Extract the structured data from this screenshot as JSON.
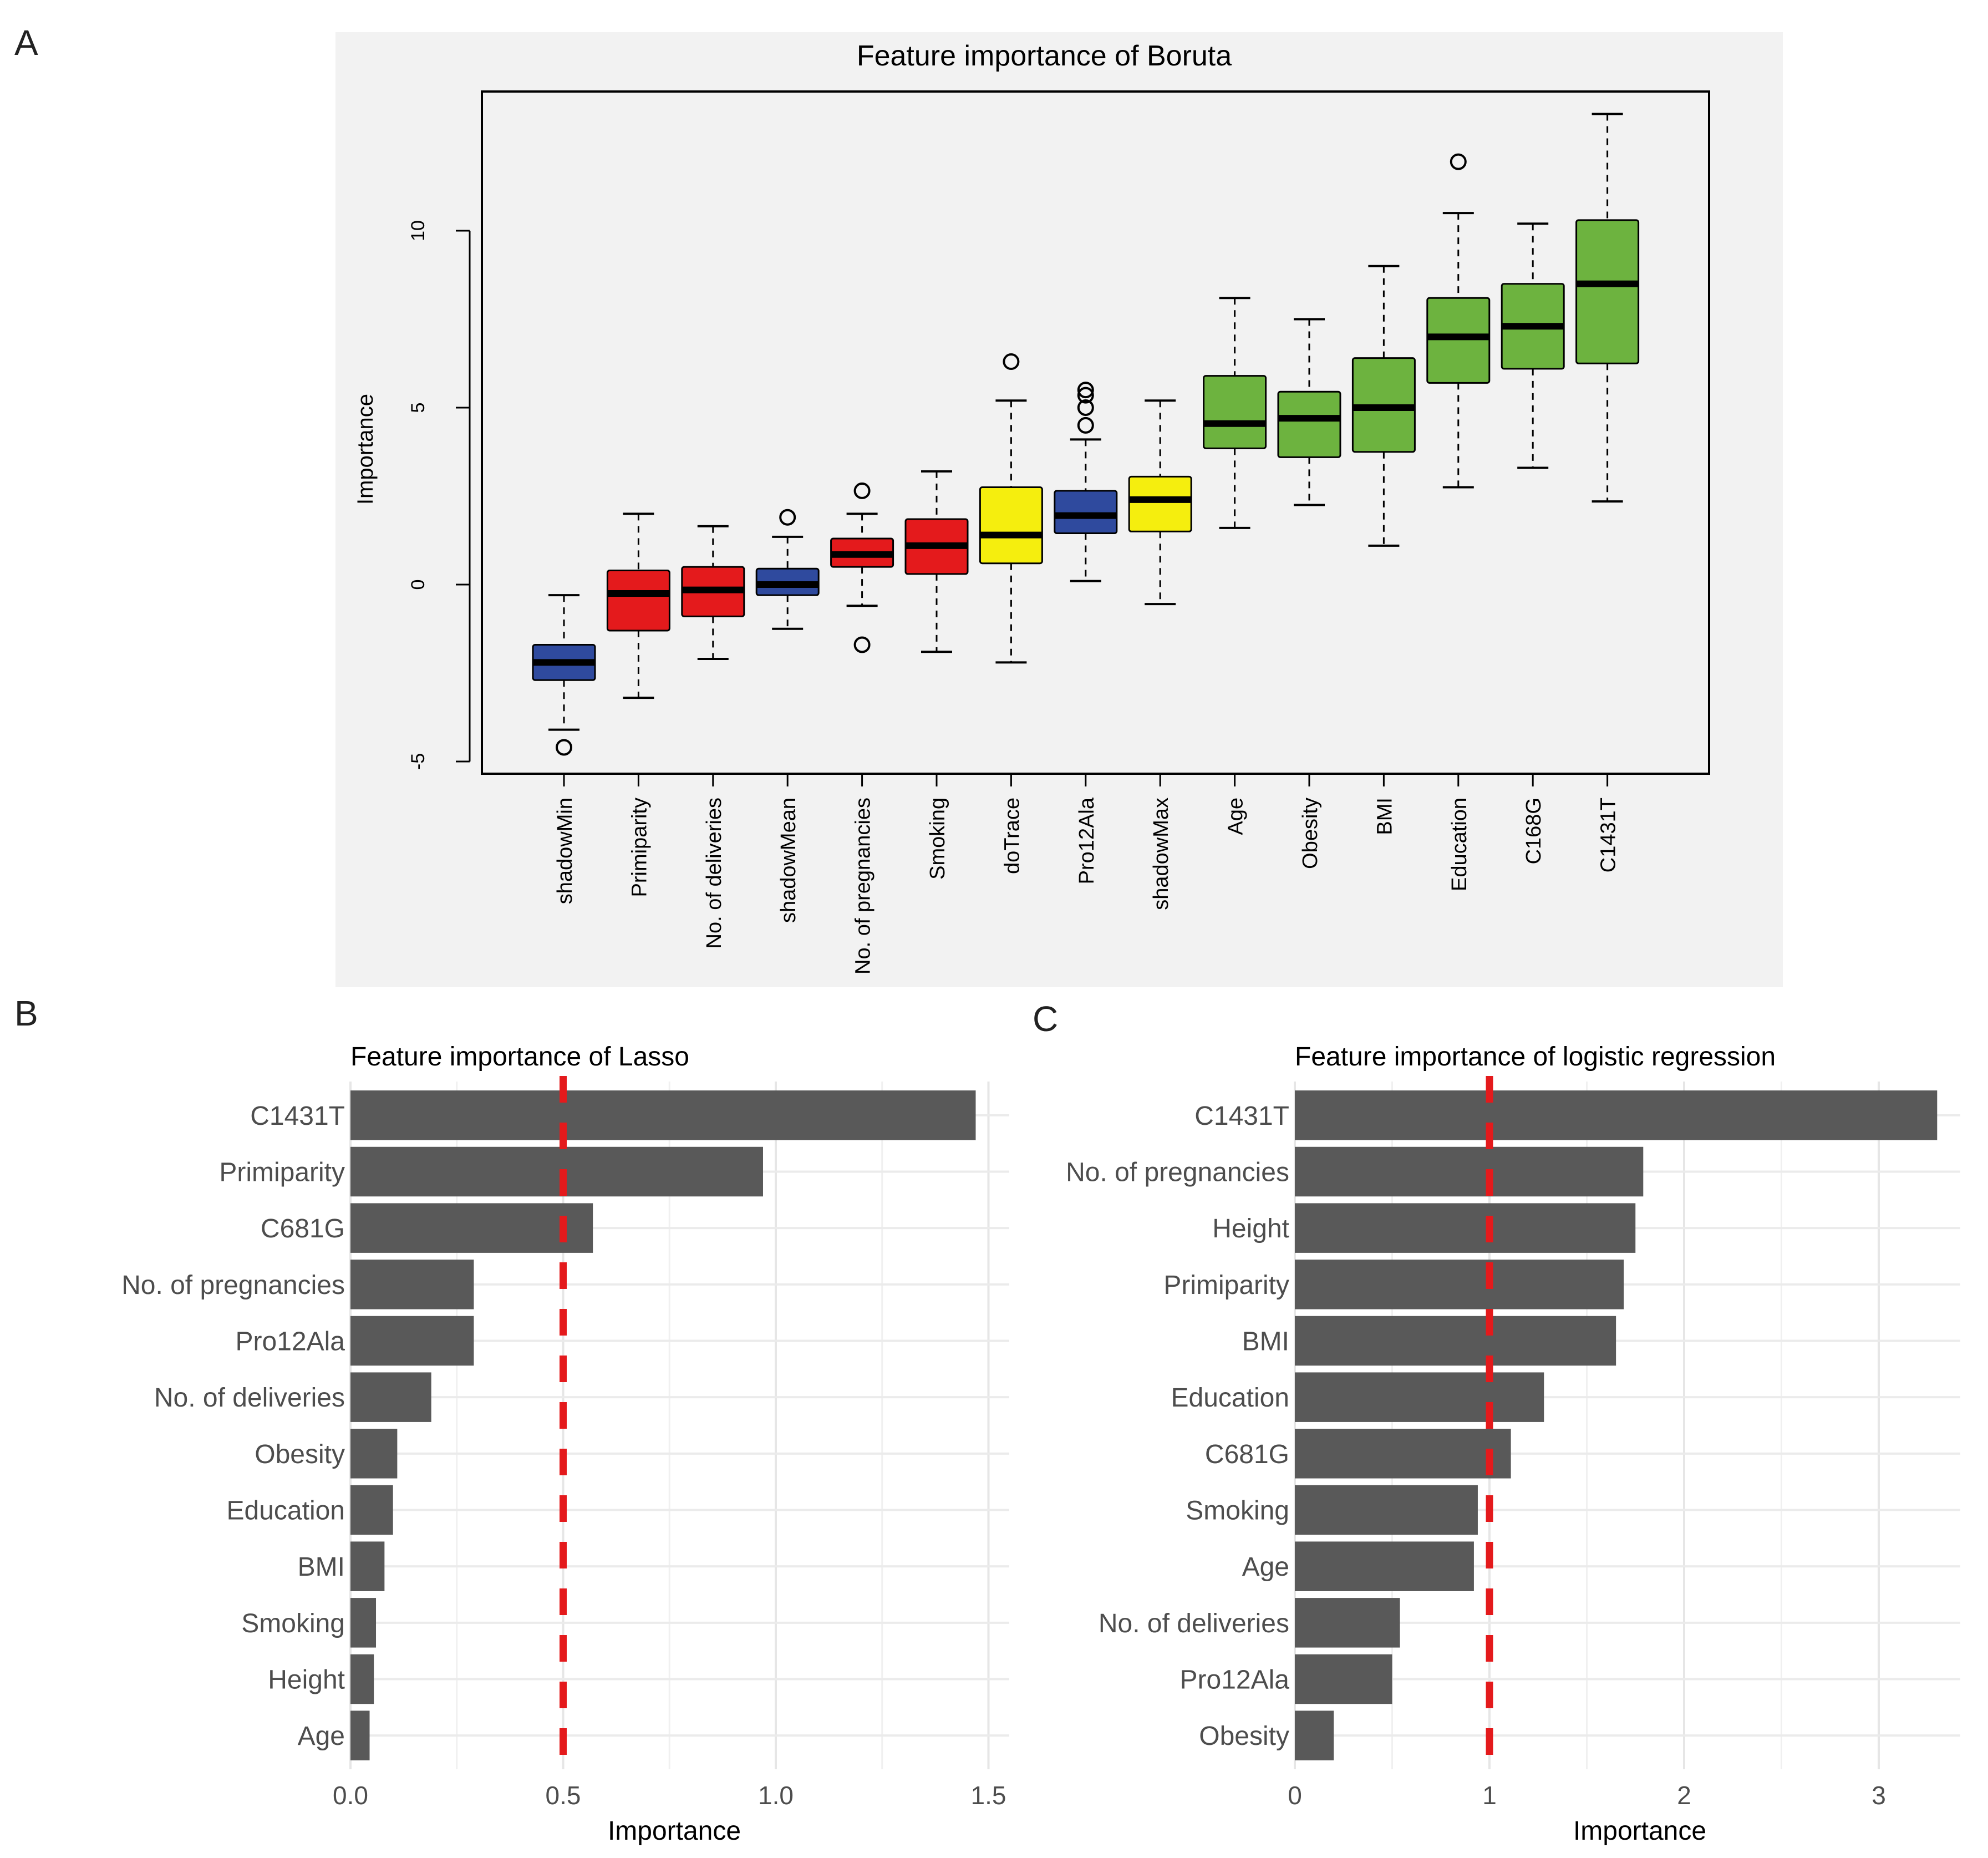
{
  "panel_letters": {
    "a": "A",
    "b": "B",
    "c": "C"
  },
  "colors": {
    "rejected": "#e41a1c",
    "tentative": "#f5ee0e",
    "confirmed": "#6db33f",
    "shadow": "#2f4a9e",
    "bar": "#595959",
    "threshold": "#e41a1c",
    "panel_bg": "#f2f2f2",
    "grid": "#ebebeb"
  },
  "chart_data": [
    {
      "id": "boruta",
      "type": "box",
      "title": "Feature importance of Boruta",
      "xlabel": "",
      "ylabel": "Importance",
      "ylim": [
        -5.5,
        14
      ],
      "yticks": [
        -5,
        0,
        5,
        10
      ],
      "ytick_labels": [
        "-5",
        "0",
        "5",
        "10"
      ],
      "boxes": [
        {
          "name": "shadowMin",
          "status": "shadow",
          "low": -4.1,
          "q1": -2.7,
          "median": -2.2,
          "q3": -1.7,
          "high": -0.3,
          "outliers": [
            -4.6
          ]
        },
        {
          "name": "Primiparity",
          "status": "rejected",
          "low": -3.2,
          "q1": -1.3,
          "median": -0.25,
          "q3": 0.4,
          "high": 2.0,
          "outliers": []
        },
        {
          "name": "No. of deliveries",
          "status": "rejected",
          "low": -2.1,
          "q1": -0.9,
          "median": -0.15,
          "q3": 0.5,
          "high": 1.65,
          "outliers": []
        },
        {
          "name": "shadowMean",
          "status": "shadow",
          "low": -1.25,
          "q1": -0.3,
          "median": 0.0,
          "q3": 0.45,
          "high": 1.35,
          "outliers": [
            1.9
          ]
        },
        {
          "name": "No. of pregnancies",
          "status": "rejected",
          "low": -0.6,
          "q1": 0.5,
          "median": 0.85,
          "q3": 1.3,
          "high": 2.0,
          "outliers": [
            -1.7,
            2.65
          ]
        },
        {
          "name": "Smoking",
          "status": "rejected",
          "low": -1.9,
          "q1": 0.3,
          "median": 1.1,
          "q3": 1.85,
          "high": 3.2,
          "outliers": []
        },
        {
          "name": "doTrace",
          "status": "tentative",
          "low": -2.2,
          "q1": 0.6,
          "median": 1.4,
          "q3": 2.75,
          "high": 5.2,
          "outliers": [
            6.3
          ]
        },
        {
          "name": "Pro12Ala",
          "status": "shadow",
          "low": 0.1,
          "q1": 1.45,
          "median": 1.95,
          "q3": 2.65,
          "high": 4.1,
          "outliers": [
            4.5,
            5.0,
            5.35,
            5.5
          ]
        },
        {
          "name": "shadowMax",
          "status": "tentative",
          "low": -0.55,
          "q1": 1.5,
          "median": 2.4,
          "q3": 3.05,
          "high": 5.2,
          "outliers": []
        },
        {
          "name": "Age",
          "status": "confirmed",
          "low": 1.6,
          "q1": 3.85,
          "median": 4.55,
          "q3": 5.9,
          "high": 8.1,
          "outliers": []
        },
        {
          "name": "Obesity",
          "status": "confirmed",
          "low": 2.25,
          "q1": 3.6,
          "median": 4.7,
          "q3": 5.45,
          "high": 7.5,
          "outliers": []
        },
        {
          "name": "BMI",
          "status": "confirmed",
          "low": 1.1,
          "q1": 3.75,
          "median": 5.0,
          "q3": 6.4,
          "high": 9.0,
          "outliers": []
        },
        {
          "name": "Education",
          "status": "confirmed",
          "low": 2.75,
          "q1": 5.7,
          "median": 7.0,
          "q3": 8.1,
          "high": 10.5,
          "outliers": [
            11.95
          ]
        },
        {
          "name": "C168G",
          "status": "confirmed",
          "low": 3.3,
          "q1": 6.1,
          "median": 7.3,
          "q3": 8.5,
          "high": 10.2,
          "outliers": []
        },
        {
          "name": "C1431T",
          "status": "confirmed",
          "low": 2.35,
          "q1": 6.25,
          "median": 8.5,
          "q3": 10.3,
          "high": 13.3,
          "outliers": []
        }
      ]
    },
    {
      "id": "lasso",
      "type": "bar",
      "orientation": "horizontal",
      "title": "Feature importance of Lasso",
      "xlabel": "Importance",
      "ylabel": "",
      "xlim": [
        0,
        1.55
      ],
      "xticks": [
        0,
        0.5,
        1.0,
        1.5
      ],
      "xtick_labels": [
        "0.0",
        "0.5",
        "1.0",
        "1.5"
      ],
      "threshold": 0.5,
      "categories": [
        "C1431T",
        "Primiparity",
        "C681G",
        "No. of pregnancies",
        "Pro12Ala",
        "No. of deliveries",
        "Obesity",
        "Education",
        "BMI",
        "Smoking",
        "Height",
        "Age"
      ],
      "values": [
        1.47,
        0.97,
        0.57,
        0.29,
        0.29,
        0.19,
        0.11,
        0.1,
        0.08,
        0.06,
        0.055,
        0.045
      ]
    },
    {
      "id": "logistic",
      "type": "bar",
      "orientation": "horizontal",
      "title": "Feature importance of logistic regression",
      "xlabel": "Importance",
      "ylabel": "",
      "xlim": [
        0,
        3.4
      ],
      "xticks": [
        0,
        1,
        2,
        3
      ],
      "xtick_labels": [
        "0",
        "1",
        "2",
        "3"
      ],
      "threshold": 1.0,
      "categories": [
        "C1431T",
        "No. of pregnancies",
        "Height",
        "Primiparity",
        "BMI",
        "Education",
        "C681G",
        "Smoking",
        "Age",
        "No. of deliveries",
        "Pro12Ala",
        "Obesity"
      ],
      "values": [
        3.3,
        1.79,
        1.75,
        1.69,
        1.65,
        1.28,
        1.11,
        0.94,
        0.92,
        0.54,
        0.5,
        0.2
      ]
    }
  ]
}
